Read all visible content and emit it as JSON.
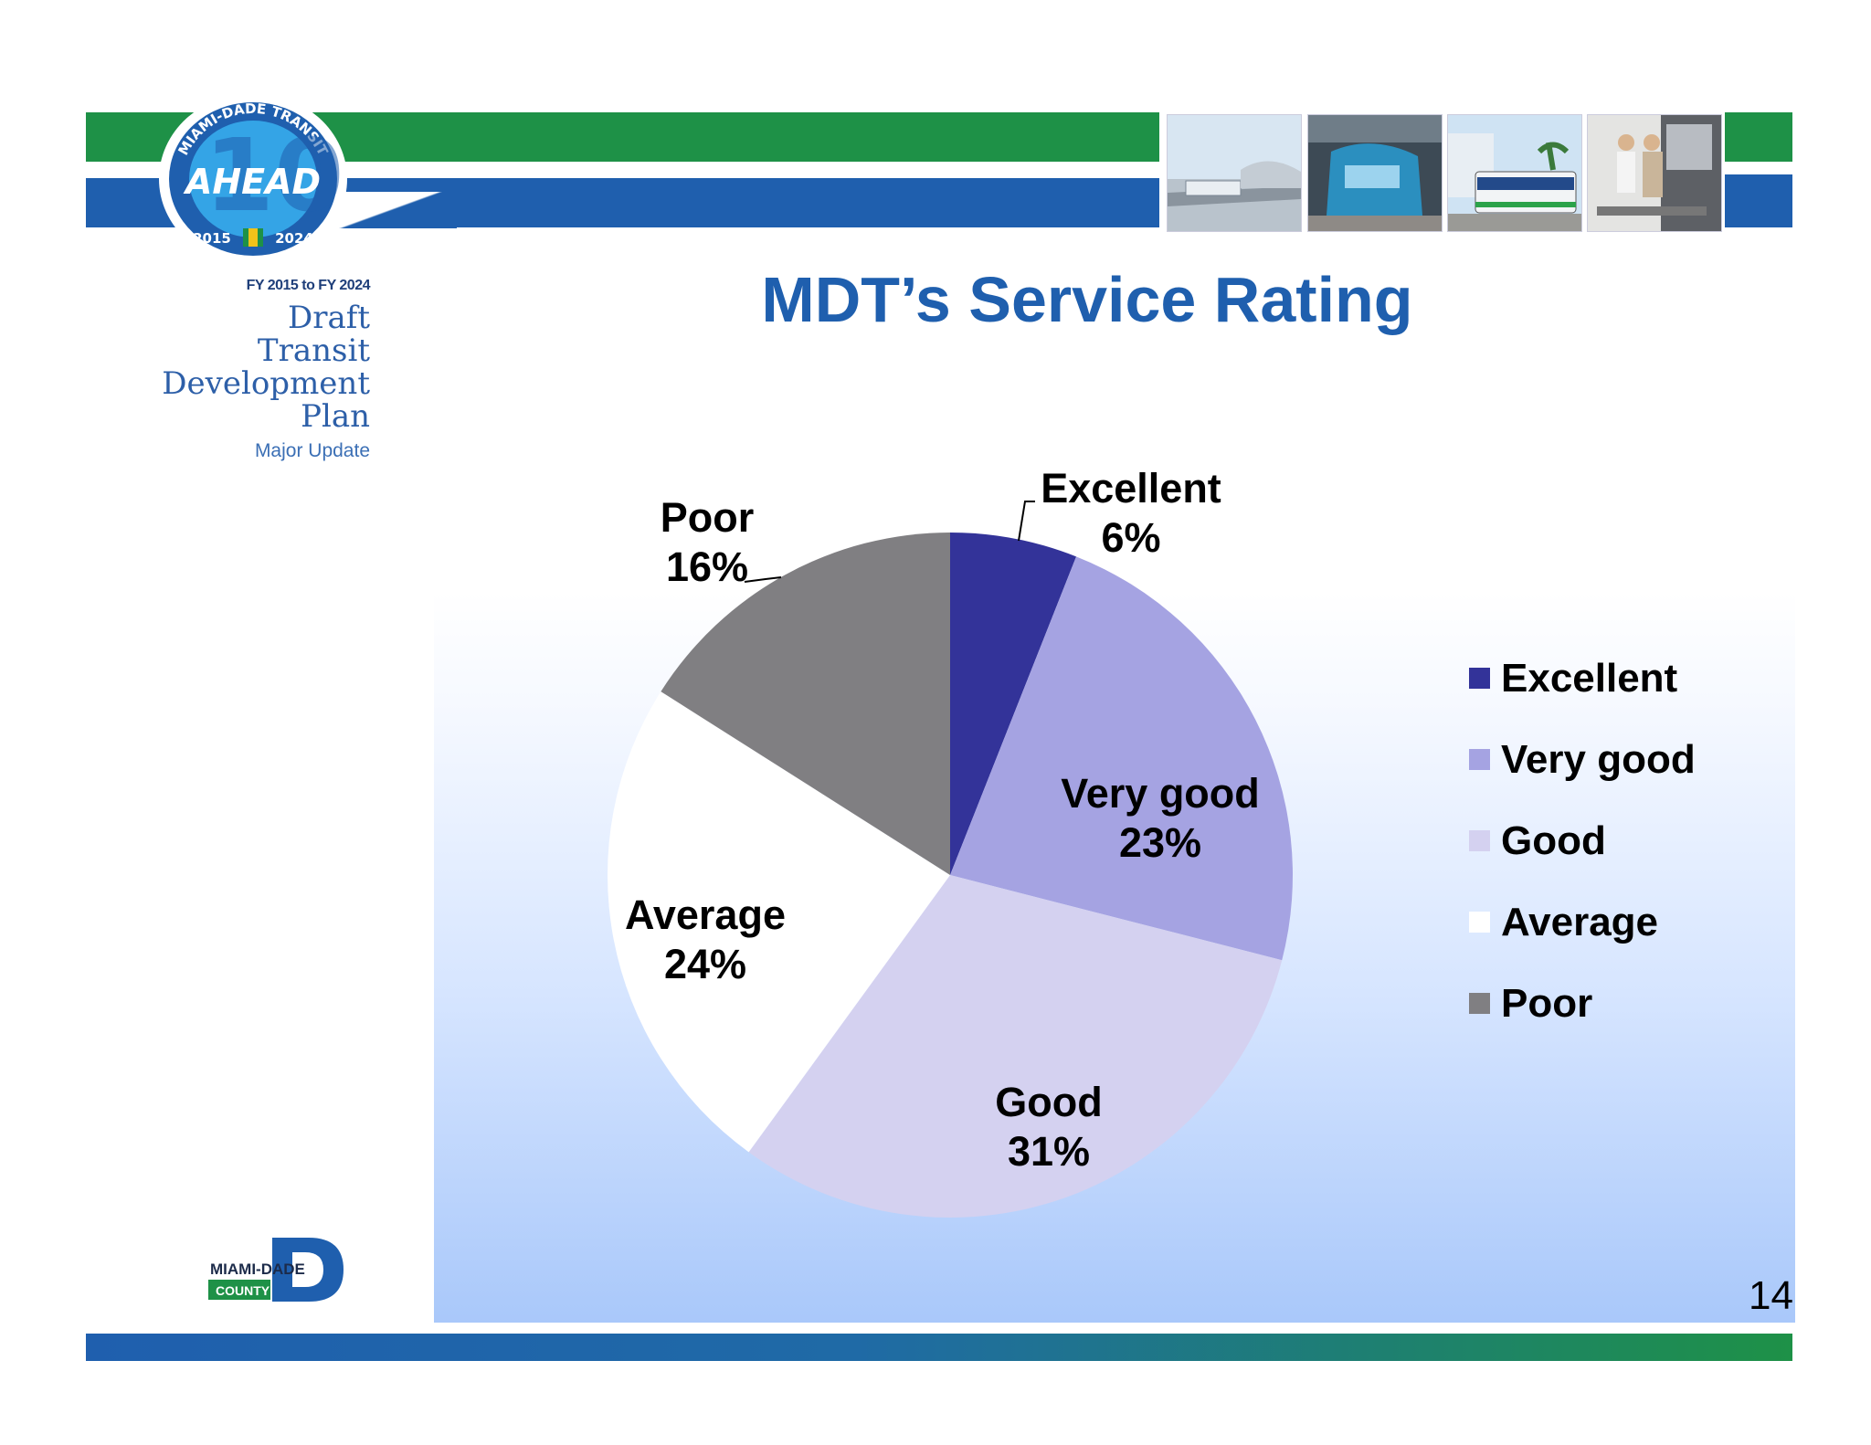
{
  "header": {
    "logo_ring_text": "MIAMI-DADE TRANSIT",
    "logo_center_text": "AHEAD",
    "logo_years_left": "2015",
    "logo_years_right": "2024"
  },
  "sidebar": {
    "fy_range": "FY 2015 to FY 2024",
    "plan_lines": [
      "Draft",
      "Transit",
      "Development",
      "Plan"
    ],
    "plan_subtitle": "Major Update",
    "county_logo_line1": "MIAMI-DADE",
    "county_logo_line2": "COUNTY"
  },
  "slide": {
    "title": "MDT’s Service Rating",
    "page_number": "14"
  },
  "colors": {
    "header_green": "#1e9147",
    "header_blue": "#1f5fae",
    "title_blue": "#1f5fae"
  },
  "chart_data": {
    "type": "pie",
    "categories": [
      "Excellent",
      "Very good",
      "Good",
      "Average",
      "Poor"
    ],
    "values": [
      6,
      23,
      31,
      24,
      16
    ],
    "value_labels": [
      "6%",
      "23%",
      "31%",
      "24%",
      "16%"
    ],
    "colors": [
      "#333399",
      "#a5a3e2",
      "#d4d1f0",
      "#ffffff",
      "#807f82"
    ],
    "legend_position": "right",
    "start_angle": "12 o'clock, clockwise"
  }
}
